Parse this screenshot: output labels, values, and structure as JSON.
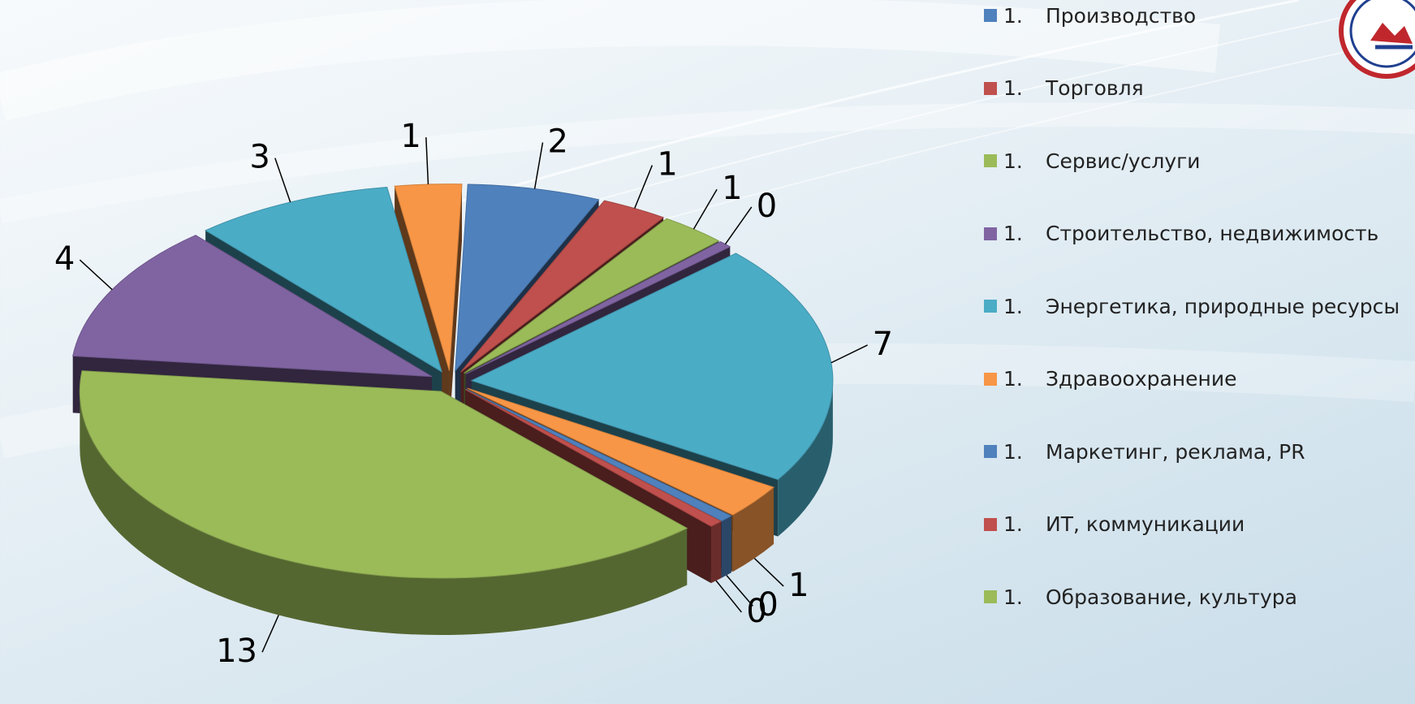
{
  "chart_data": {
    "type": "pie",
    "title": "",
    "categories": [
      "Производство",
      "Торговля",
      "Сервис/услуги",
      "Строительство, недвижимость",
      "Энергетика, природные ресурсы",
      "Здравоохранение",
      "Маркетинг, реклама, PR",
      "ИТ, коммуникации",
      "Образование, культура"
    ],
    "values": [
      2,
      1,
      1,
      0,
      7,
      1,
      0,
      0,
      13
    ],
    "extra_slices": [
      {
        "value": 4,
        "color": "#8064a2"
      },
      {
        "value": 3,
        "color": "#4bacc6"
      },
      {
        "value": 1,
        "color": "#f79646"
      }
    ],
    "legend_number": "1.",
    "legend_position": "right",
    "colors": [
      "#4f81bd",
      "#c0504d",
      "#9bbb59",
      "#8064a2",
      "#4bacc6",
      "#f79646",
      "#4f81bd",
      "#c0504d",
      "#9bbb59"
    ]
  }
}
